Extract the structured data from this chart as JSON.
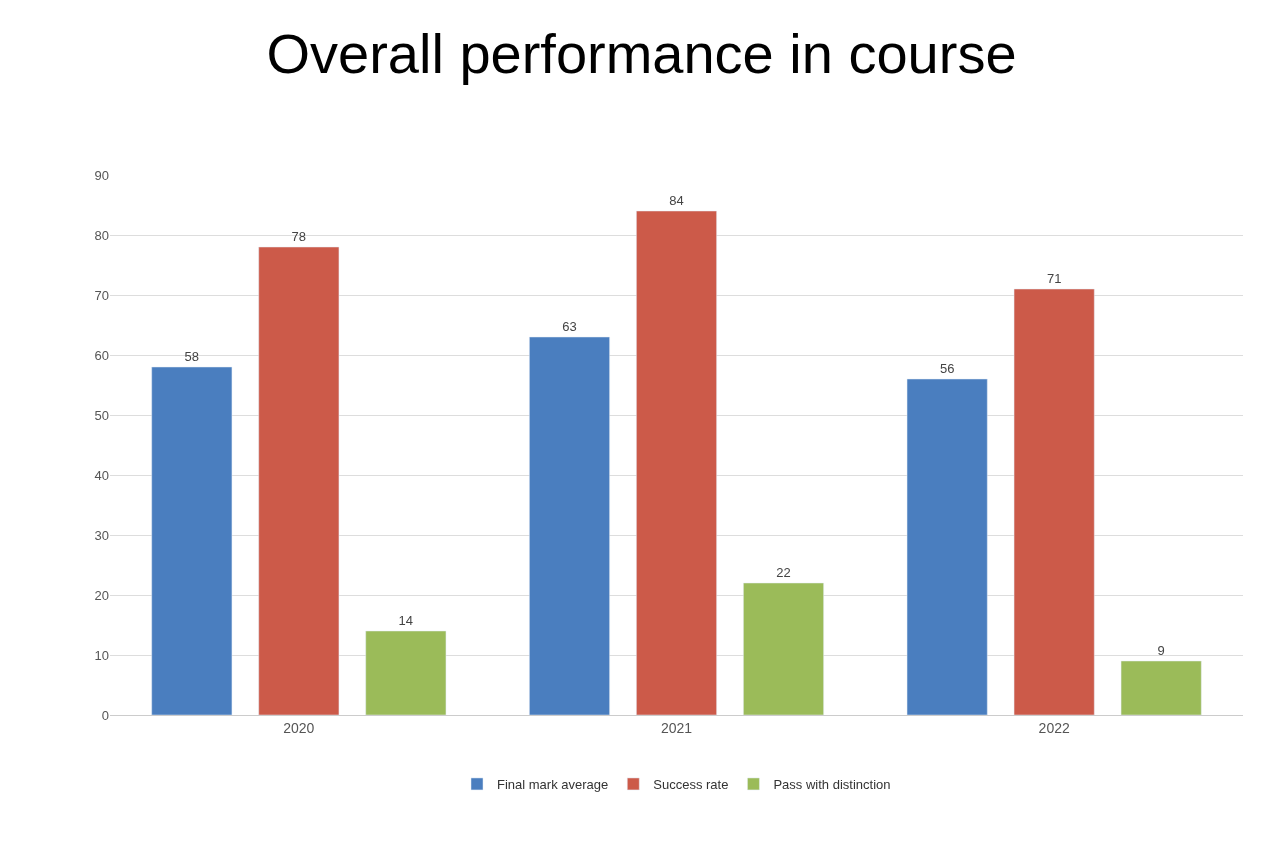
{
  "chart_data": {
    "type": "bar",
    "title": "Overall performance in course",
    "categories": [
      "2020",
      "2021",
      "2022"
    ],
    "series": [
      {
        "name": "Final mark average",
        "color": "#4a7ebf",
        "values": [
          58,
          63,
          56
        ]
      },
      {
        "name": "Success rate",
        "color": "#cc5a49",
        "values": [
          78,
          84,
          71
        ]
      },
      {
        "name": "Pass with distinction",
        "color": "#9bbb59",
        "values": [
          14,
          22,
          9
        ]
      }
    ],
    "ylim": [
      0,
      90
    ],
    "yticks": [
      0,
      10,
      20,
      30,
      40,
      50,
      60,
      70,
      80,
      90
    ],
    "grid": "y",
    "legend": "bottom",
    "data_labels": true
  }
}
